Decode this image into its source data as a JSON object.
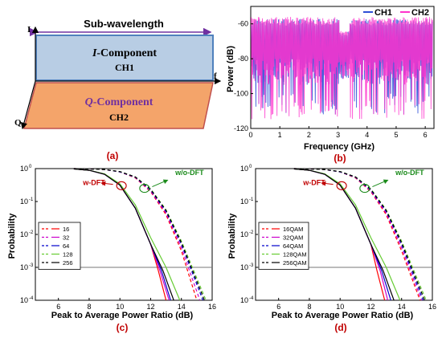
{
  "diagram": {
    "title": "Sub-wavelength",
    "i_axis": "I",
    "q_axis": "Q",
    "f_axis": "f",
    "i_component_prefix": "I",
    "i_component_suffix": "-Component",
    "i_channel": "CH1",
    "q_component_prefix": "Q",
    "q_component_suffix": "-Component",
    "q_channel": "CH2",
    "panel_label": "(a)",
    "colors": {
      "i_fill": "#b8cde4",
      "i_stroke": "#4f81bd",
      "q_fill": "#f4a46a",
      "q_stroke": "#c0504d",
      "q_text": "#7030a0",
      "arrow": "#7030a0"
    }
  },
  "chart_data": [
    {
      "id": "b",
      "type": "line",
      "panel_label": "(b)",
      "xlabel": "Frequency (GHz)",
      "ylabel": "Power (dB)",
      "xlim": [
        0,
        6.3
      ],
      "ylim": [
        -120,
        -50
      ],
      "xticks": [
        0,
        1,
        2,
        3,
        4,
        5,
        6
      ],
      "yticks": [
        -60,
        -80,
        -100,
        -120
      ],
      "legend_position": "top-right",
      "series": [
        {
          "name": "CH1",
          "color": "#2e4fd6",
          "band_top_db": -61,
          "band_floor_db": -80,
          "null_floor_db": -112,
          "notch_ghz": [
            3.1,
            3.2,
            3.3
          ]
        },
        {
          "name": "CH2",
          "color": "#ff33cc",
          "band_top_db": -60,
          "band_floor_db": -80,
          "null_floor_db": -115,
          "notch_ghz": [
            3.1,
            3.2,
            3.3
          ]
        }
      ]
    },
    {
      "id": "c",
      "type": "line",
      "panel_label": "(c)",
      "xlabel": "Peak to Average Power Ratio (dB)",
      "ylabel": "Probability",
      "xlim": [
        4.5,
        16
      ],
      "ylim_log10": [
        -4,
        0
      ],
      "xticks": [
        6,
        8,
        10,
        12,
        14,
        16
      ],
      "yticks": [
        {
          "value": 0,
          "label": "10",
          "exp": "0"
        },
        {
          "value": -1,
          "label": "10",
          "exp": "-1"
        },
        {
          "value": -2,
          "label": "10",
          "exp": "-2"
        },
        {
          "value": -3,
          "label": "10",
          "exp": "-3"
        },
        {
          "value": -4,
          "label": "10",
          "exp": "-4"
        }
      ],
      "reference_line_log10": -3,
      "legend_position": "left",
      "annotations": [
        {
          "text": "w-DFT",
          "color": "#c00000",
          "x": 7.6,
          "y_log10": -0.33
        },
        {
          "text": "w/o-DFT",
          "color": "#1a8a1a",
          "x": 13.6,
          "y_log10": -0.2
        }
      ],
      "series": [
        {
          "name": "16",
          "color": "#ff0000",
          "wdft_x": [
            7,
            8,
            9,
            10,
            11,
            12,
            12.5,
            13.0
          ],
          "wdft_log10": [
            -0.01,
            -0.05,
            -0.17,
            -0.5,
            -1.2,
            -2.3,
            -3.1,
            -4.0
          ],
          "wodft_x": [
            7,
            8,
            9,
            10,
            11,
            12,
            13,
            14,
            15.0
          ],
          "wodft_log10": [
            0,
            -0.01,
            -0.03,
            -0.1,
            -0.28,
            -0.7,
            -1.4,
            -2.5,
            -4.0
          ]
        },
        {
          "name": "32",
          "color": "#cc00cc",
          "wdft_x": [
            7,
            8,
            9,
            10,
            11,
            12,
            12.6,
            13.2
          ],
          "wdft_log10": [
            -0.01,
            -0.05,
            -0.17,
            -0.5,
            -1.2,
            -2.3,
            -3.1,
            -4.0
          ],
          "wodft_x": [
            7,
            8,
            9,
            10,
            11,
            12,
            13,
            14,
            15.2
          ],
          "wodft_log10": [
            0,
            -0.01,
            -0.03,
            -0.1,
            -0.27,
            -0.68,
            -1.35,
            -2.4,
            -4.0
          ]
        },
        {
          "name": "64",
          "color": "#0000cc",
          "wdft_x": [
            7,
            8,
            9,
            10,
            11,
            12,
            12.7,
            13.3
          ],
          "wdft_log10": [
            -0.01,
            -0.05,
            -0.17,
            -0.5,
            -1.2,
            -2.3,
            -3.1,
            -4.0
          ],
          "wodft_x": [
            7,
            8,
            9,
            10,
            11,
            12,
            13,
            14,
            15.4
          ],
          "wodft_log10": [
            0,
            -0.01,
            -0.03,
            -0.1,
            -0.26,
            -0.65,
            -1.3,
            -2.3,
            -4.0
          ]
        },
        {
          "name": "128",
          "color": "#66cc33",
          "wdft_x": [
            7,
            8,
            9,
            10,
            11,
            12,
            13,
            13.9
          ],
          "wdft_log10": [
            -0.01,
            -0.05,
            -0.16,
            -0.46,
            -1.1,
            -2.1,
            -3.0,
            -4.0
          ],
          "wodft_x": [
            7,
            8,
            9,
            10,
            11,
            12,
            13,
            14,
            15.6
          ],
          "wodft_log10": [
            0,
            -0.01,
            -0.03,
            -0.09,
            -0.25,
            -0.62,
            -1.25,
            -2.2,
            -4.0
          ]
        },
        {
          "name": "256",
          "color": "#000000",
          "wdft_x": [
            7,
            8,
            9,
            10,
            11,
            12,
            12.8,
            13.5
          ],
          "wdft_log10": [
            -0.01,
            -0.05,
            -0.17,
            -0.5,
            -1.2,
            -2.3,
            -3.1,
            -4.0
          ],
          "wodft_x": [
            7,
            8,
            9,
            10,
            11,
            12,
            13,
            14,
            15.5
          ],
          "wodft_log10": [
            0,
            -0.01,
            -0.03,
            -0.09,
            -0.25,
            -0.63,
            -1.27,
            -2.25,
            -4.0
          ]
        }
      ]
    },
    {
      "id": "d",
      "type": "line",
      "panel_label": "(d)",
      "xlabel": "Peak to Average Power Ratio (dB)",
      "ylabel": "Probability",
      "xlim": [
        4.5,
        16
      ],
      "ylim_log10": [
        -4,
        0
      ],
      "xticks": [
        6,
        8,
        10,
        12,
        14,
        16
      ],
      "yticks": [
        {
          "value": 0,
          "label": "10",
          "exp": "0"
        },
        {
          "value": -1,
          "label": "10",
          "exp": "-1"
        },
        {
          "value": -2,
          "label": "10",
          "exp": "-2"
        },
        {
          "value": -3,
          "label": "10",
          "exp": "-3"
        },
        {
          "value": -4,
          "label": "10",
          "exp": "-4"
        }
      ],
      "reference_line_log10": -3,
      "legend_position": "left",
      "annotations": [
        {
          "text": "w-DFT",
          "color": "#c00000",
          "x": 7.6,
          "y_log10": -0.33
        },
        {
          "text": "w/o-DFT",
          "color": "#1a8a1a",
          "x": 13.6,
          "y_log10": -0.2
        }
      ],
      "series": [
        {
          "name": "16QAM",
          "color": "#ff0000",
          "wdft_x": [
            7,
            8,
            9,
            10,
            11,
            12,
            12.4,
            12.9
          ],
          "wdft_log10": [
            -0.01,
            -0.05,
            -0.17,
            -0.5,
            -1.2,
            -2.3,
            -3.1,
            -4.0
          ],
          "wodft_x": [
            7,
            8,
            9,
            10,
            11,
            12,
            13,
            14,
            15.2
          ],
          "wodft_log10": [
            0,
            -0.01,
            -0.03,
            -0.1,
            -0.28,
            -0.7,
            -1.4,
            -2.5,
            -4.0
          ]
        },
        {
          "name": "32QAM",
          "color": "#cc00cc",
          "wdft_x": [
            7,
            8,
            9,
            10,
            11,
            12,
            12.6,
            13.1
          ],
          "wdft_log10": [
            -0.01,
            -0.05,
            -0.17,
            -0.5,
            -1.2,
            -2.3,
            -3.1,
            -4.0
          ],
          "wodft_x": [
            7,
            8,
            9,
            10,
            11,
            12,
            13,
            14,
            15.3
          ],
          "wodft_log10": [
            0,
            -0.01,
            -0.03,
            -0.1,
            -0.27,
            -0.68,
            -1.35,
            -2.4,
            -4.0
          ]
        },
        {
          "name": "64QAM",
          "color": "#0000cc",
          "wdft_x": [
            7,
            8,
            9,
            10,
            11,
            12,
            12.7,
            13.3
          ],
          "wdft_log10": [
            -0.01,
            -0.05,
            -0.17,
            -0.5,
            -1.2,
            -2.3,
            -3.1,
            -4.0
          ],
          "wodft_x": [
            7,
            8,
            9,
            10,
            11,
            12,
            13,
            14,
            15.4
          ],
          "wodft_log10": [
            0,
            -0.01,
            -0.03,
            -0.1,
            -0.26,
            -0.65,
            -1.3,
            -2.3,
            -4.0
          ]
        },
        {
          "name": "128QAM",
          "color": "#66cc33",
          "wdft_x": [
            7,
            8,
            9,
            10,
            11,
            12,
            13,
            13.9
          ],
          "wdft_log10": [
            -0.01,
            -0.05,
            -0.16,
            -0.46,
            -1.1,
            -2.1,
            -3.0,
            -4.0
          ],
          "wodft_x": [
            7,
            8,
            9,
            10,
            11,
            12,
            13,
            14,
            15.6
          ],
          "wodft_log10": [
            0,
            -0.01,
            -0.03,
            -0.09,
            -0.25,
            -0.62,
            -1.25,
            -2.2,
            -4.0
          ]
        },
        {
          "name": "256QAM",
          "color": "#000000",
          "wdft_x": [
            7,
            8,
            9,
            10,
            11,
            12,
            12.8,
            13.5
          ],
          "wdft_log10": [
            -0.01,
            -0.05,
            -0.17,
            -0.5,
            -1.2,
            -2.3,
            -3.1,
            -4.0
          ],
          "wodft_x": [
            7,
            8,
            9,
            10,
            11,
            12,
            13,
            14,
            15.5
          ],
          "wodft_log10": [
            0,
            -0.01,
            -0.03,
            -0.09,
            -0.25,
            -0.63,
            -1.27,
            -2.25,
            -4.0
          ]
        }
      ]
    }
  ]
}
